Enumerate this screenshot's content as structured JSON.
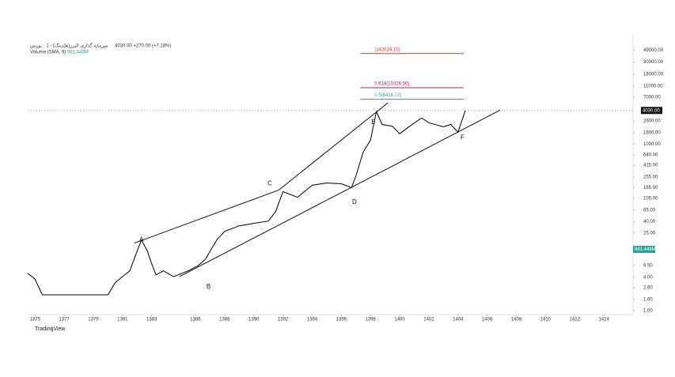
{
  "chart_data": {
    "type": "line",
    "title": "سرمایه گذاری البرز(هلدینگ) · 1 · بورس",
    "subtitle": "4030.00 +270.00 (+7.18%)",
    "volume_label": "Volume (SMA, 9)",
    "volume_value": "981.449M",
    "footer": "TradingView",
    "log_scale": true,
    "xlim": [
      1374.5,
      1416
    ],
    "ylim": [
      0.85,
      90000
    ],
    "xticks": [
      1375,
      1377,
      1379,
      1381,
      1383,
      1386,
      1388,
      1390,
      1392,
      1394,
      1396,
      1398,
      1400,
      1402,
      1404,
      1406,
      1408,
      1410,
      1412,
      1414
    ],
    "yticks": [
      {
        "value": 1,
        "label": "1.00"
      },
      {
        "value": 1.6,
        "label": "1.60"
      },
      {
        "value": 2.6,
        "label": "2.60"
      },
      {
        "value": 4,
        "label": "4.00"
      },
      {
        "value": 6.5,
        "label": "6.50"
      },
      {
        "value": 25,
        "label": "25.00"
      },
      {
        "value": 40,
        "label": "40.00"
      },
      {
        "value": 65,
        "label": "65.00"
      },
      {
        "value": 105,
        "label": "105.00"
      },
      {
        "value": 165,
        "label": "165.00"
      },
      {
        "value": 255,
        "label": "255.00"
      },
      {
        "value": 415,
        "label": "415.00"
      },
      {
        "value": 640,
        "label": "640.00"
      },
      {
        "value": 1000,
        "label": "1000.00"
      },
      {
        "value": 1600,
        "label": "1600.00"
      },
      {
        "value": 2600,
        "label": "2600.00"
      },
      {
        "value": 7000,
        "label": "7000.00"
      },
      {
        "value": 11000,
        "label": "11000.00"
      },
      {
        "value": 18000,
        "label": "18000.00"
      },
      {
        "value": 30000,
        "label": "30000.00"
      },
      {
        "value": 49000,
        "label": "49000.00"
      }
    ],
    "series": [
      {
        "name": "Price",
        "color": "#000000",
        "x": [
          1374.5,
          1375,
          1375.5,
          1380,
          1380.5,
          1381,
          1381.5,
          1382,
          1382.3,
          1382.7,
          1383,
          1383.3,
          1383.8,
          1384.5,
          1385.5,
          1386.2,
          1386.7,
          1387,
          1387.5,
          1388,
          1389,
          1390,
          1391,
          1391.5,
          1392,
          1393,
          1394,
          1395,
          1396,
          1396.7,
          1397,
          1397.5,
          1398,
          1398.4,
          1398.8,
          1399.5,
          1400,
          1400.5,
          1401.5,
          1402,
          1403,
          1403.5,
          1404,
          1404.5
        ],
        "values": [
          4.7,
          3.7,
          1.93,
          1.93,
          3.2,
          4.1,
          5.2,
          11.8,
          18.7,
          11.8,
          7,
          4.4,
          5.2,
          4.1,
          5.2,
          6.5,
          8.5,
          11.8,
          19.3,
          26.8,
          33.7,
          37.3,
          41,
          61,
          139,
          110,
          181,
          199,
          193,
          164,
          268,
          720,
          1177,
          3840,
          2250,
          2100,
          1530,
          1930,
          2960,
          2420,
          2040,
          2250,
          1640,
          4030
        ]
      }
    ],
    "last_price": {
      "value": 4030,
      "label": "4030.00"
    },
    "fib_levels": [
      {
        "value": 42624.15,
        "label": "1(42624.15)",
        "color": "#e0303a"
      },
      {
        "value": 10326.5,
        "label": "0.618(10326.50)",
        "color": "#c2185b"
      },
      {
        "value": 6416.72,
        "label": "0.5(6416.72)",
        "color": "#26a69a"
      }
    ],
    "fib_x": [
      1397.3,
      1404.4
    ],
    "trendlines": [
      {
        "x": [
          1381.8,
          1391.7
        ],
        "y": [
          16.4,
          148
        ]
      },
      {
        "x": [
          1391.7,
          1399.2
        ],
        "y": [
          148,
          5550
        ]
      },
      {
        "x": [
          1384.9,
          1406.9
        ],
        "y": [
          4.1,
          4100
        ]
      }
    ],
    "wave_labels": [
      {
        "label": "A",
        "x": 1382.3,
        "y": 19
      },
      {
        "label": "B",
        "x": 1386.9,
        "y": 2.7
      },
      {
        "label": "C",
        "x": 1391.1,
        "y": 193
      },
      {
        "label": "D",
        "x": 1396.9,
        "y": 90
      },
      {
        "label": "E",
        "x": 1398.2,
        "y": 2440
      },
      {
        "label": "F",
        "x": 1404.3,
        "y": 1300
      }
    ]
  }
}
